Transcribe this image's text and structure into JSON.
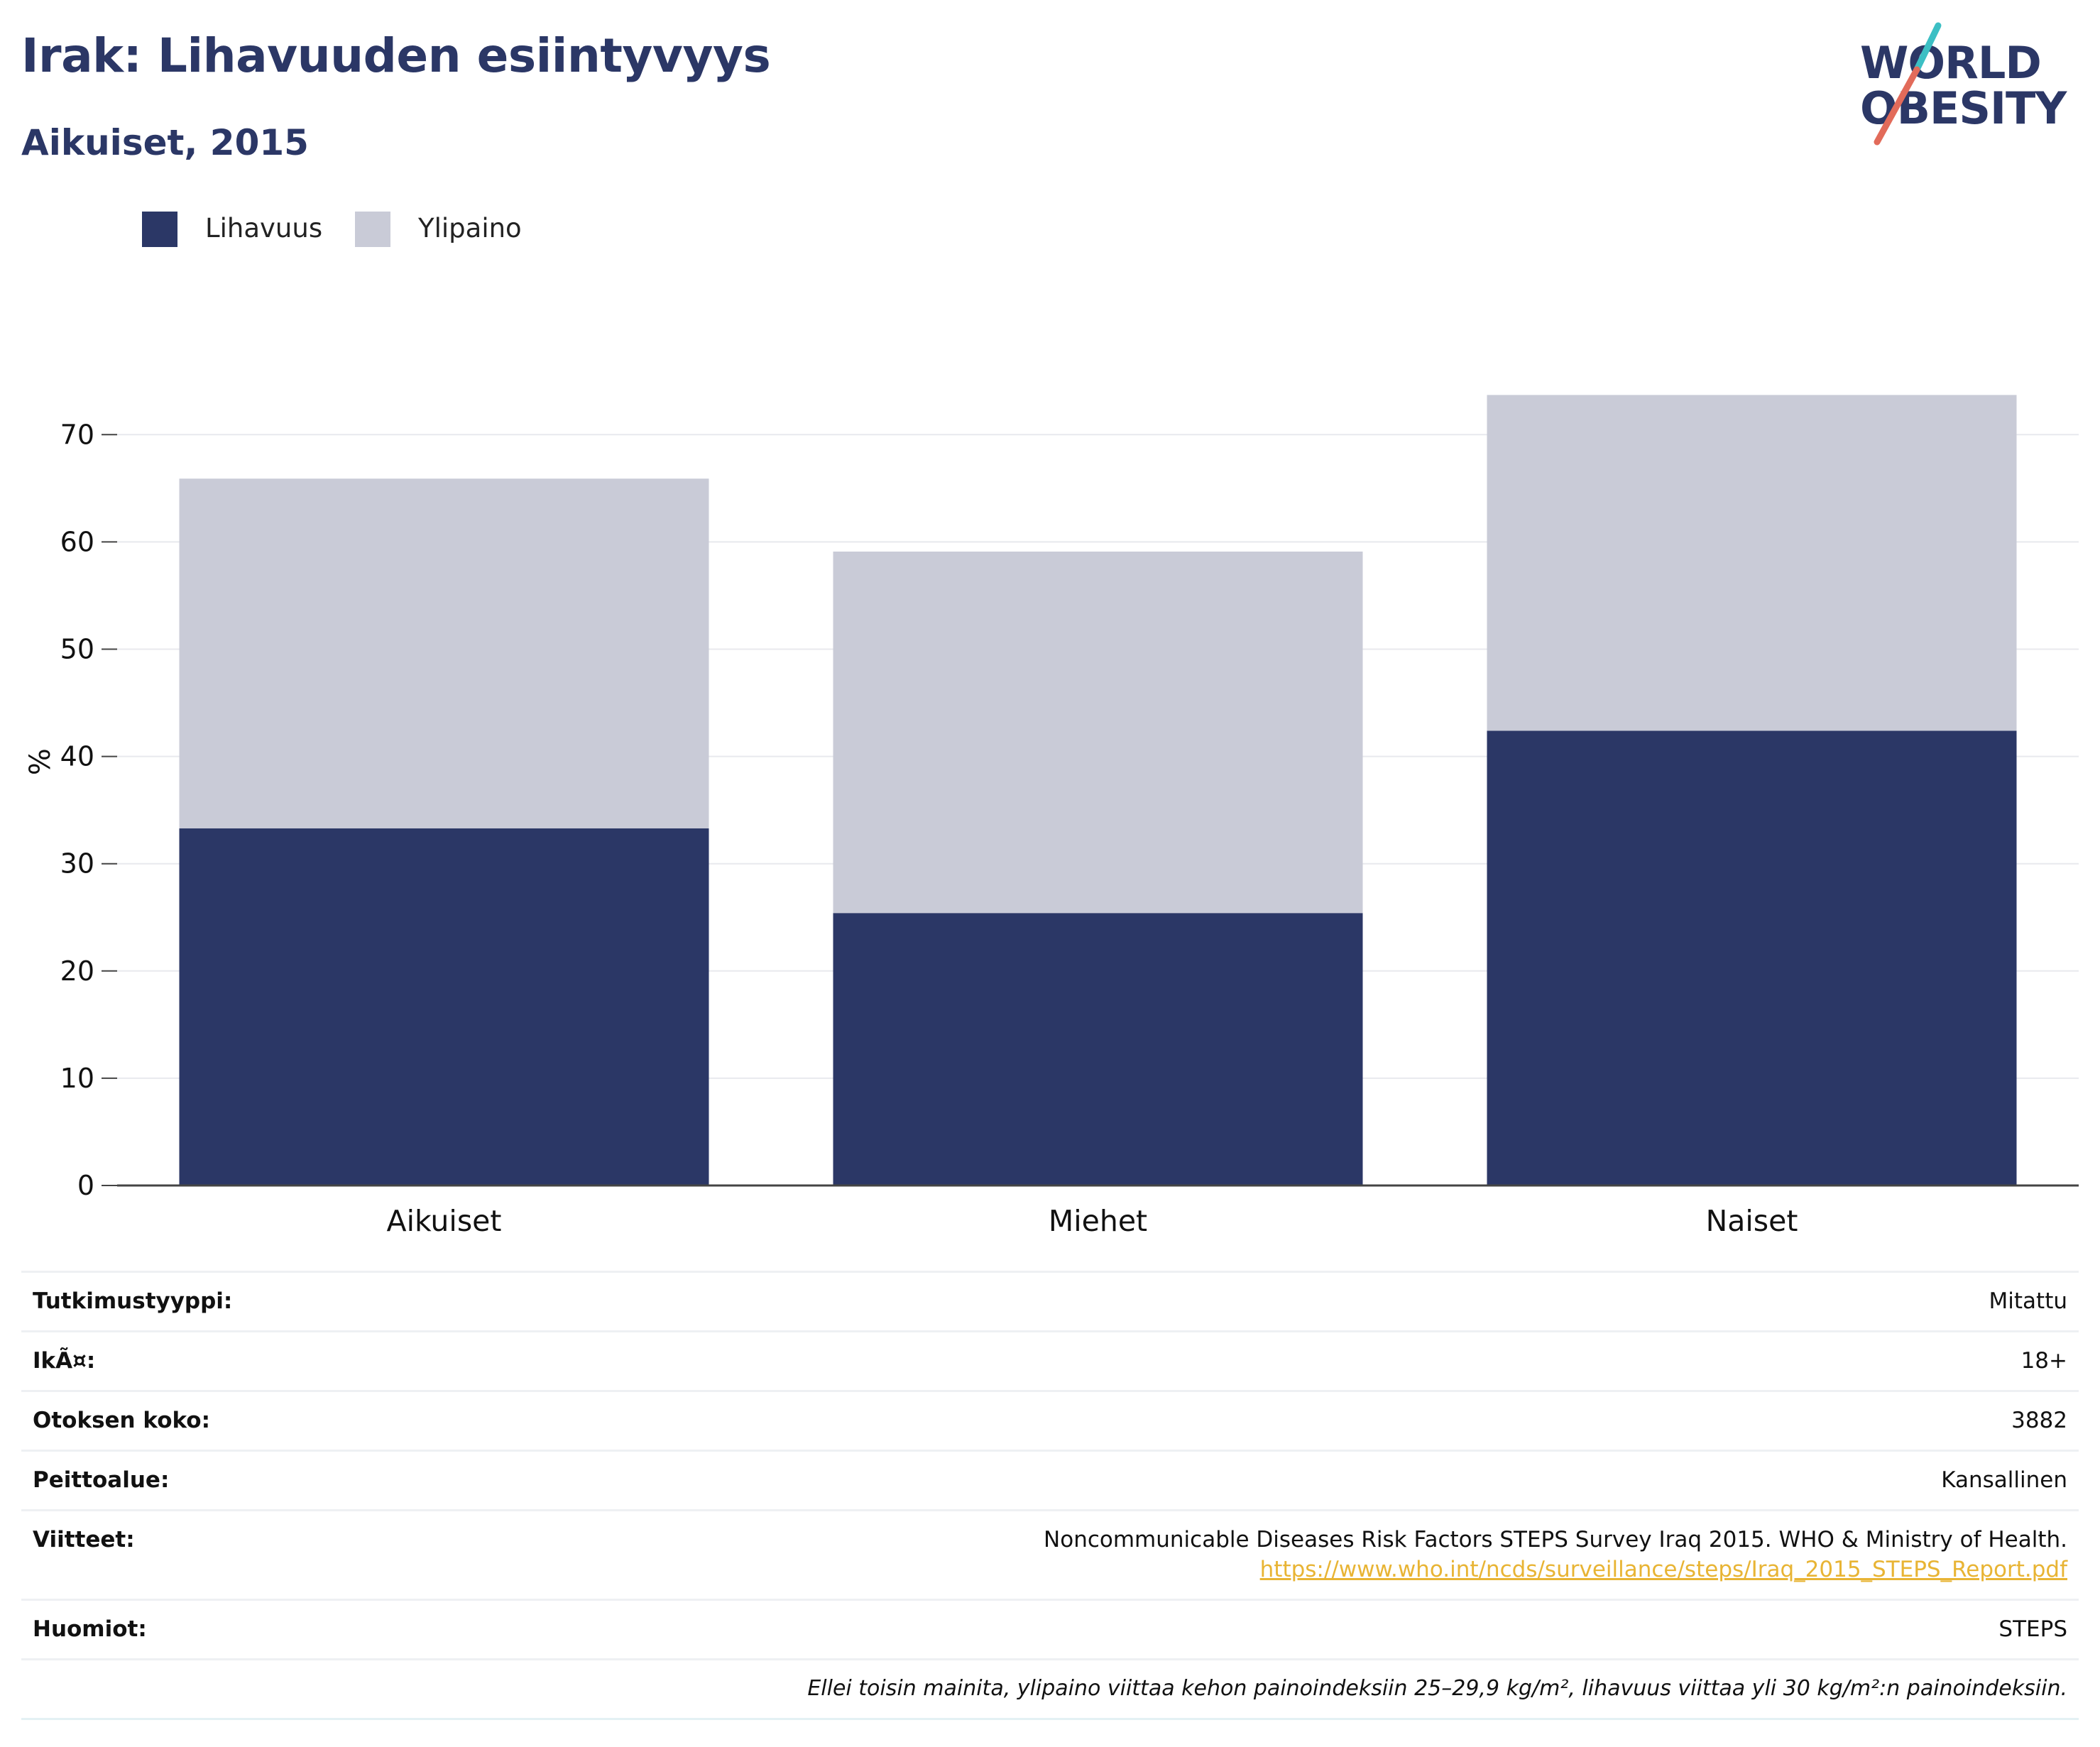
{
  "header": {
    "title": "Irak: Lihavuuden esiintyvyys",
    "subtitle": "Aikuiset, 2015"
  },
  "logo": {
    "line1": "WORLD",
    "line2": "OBESITY",
    "accent_colors": [
      "#3cbfc4",
      "#e26b5a"
    ]
  },
  "legend": [
    {
      "label": "Lihavuus",
      "color": "#2b3766"
    },
    {
      "label": "Ylipaino",
      "color": "#c9cbd7"
    }
  ],
  "chart_data": {
    "type": "bar",
    "stacked": true,
    "categories": [
      "Aikuiset",
      "Miehet",
      "Naiset"
    ],
    "series": [
      {
        "name": "Lihavuus",
        "values": [
          33.3,
          25.4,
          42.4
        ],
        "color": "#2b3766"
      },
      {
        "name": "Ylipaino",
        "values": [
          32.6,
          33.7,
          31.3
        ],
        "color": "#c9cbd7"
      }
    ],
    "ylabel": "%",
    "ylim": [
      0,
      75
    ],
    "yticks": [
      0,
      10,
      20,
      30,
      40,
      50,
      60,
      70
    ],
    "grid": true,
    "legend_position": "top-left"
  },
  "info": {
    "rows": [
      {
        "label": "Tutkimustyyppi:",
        "value": "Mitattu"
      },
      {
        "label": "IkÃ¤:",
        "value": "18+"
      },
      {
        "label": "Otoksen koko:",
        "value": "3882"
      },
      {
        "label": "Peittoalue:",
        "value": "Kansallinen"
      }
    ],
    "references": {
      "label": "Viitteet:",
      "text": "Noncommunicable Diseases Risk Factors STEPS Survey Iraq 2015. WHO & Ministry of Health.",
      "link": "https://www.who.int/ncds/surveillance/steps/Iraq_2015_STEPS_Report.pdf"
    },
    "notes": {
      "label": "Huomiot:",
      "value": "STEPS"
    },
    "footnote": "Ellei toisin mainita, ylipaino viittaa kehon painoindeksiin 25–29,9 kg/m², lihavuus viittaa yli 30 kg/m²:n painoindeksiin."
  }
}
